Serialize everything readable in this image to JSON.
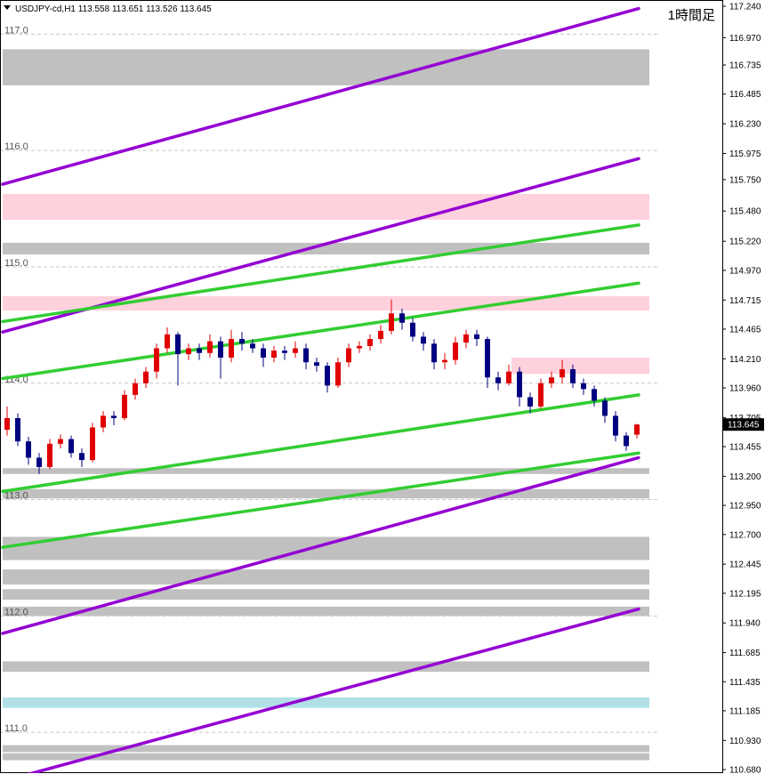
{
  "chart_data": {
    "type": "candlestick",
    "title": "USDJPY-cd,H1  113.558 113.651 113.526 113.645",
    "timeframe_label": "1時間足",
    "ylim": [
      110.68,
      117.24
    ],
    "yticks": [
      {
        "value": 117.24,
        "label": "117.240"
      },
      {
        "value": 116.97,
        "label": "116.970"
      },
      116.735,
      116.485,
      {
        "value": 116.23,
        "label": "116.230"
      },
      115.975,
      {
        "value": 115.75,
        "label": "115.750"
      },
      {
        "value": 115.48,
        "label": "115.480"
      },
      {
        "value": 115.22,
        "label": "115.220"
      },
      {
        "value": 114.97,
        "label": "114.970"
      },
      114.715,
      114.465,
      {
        "value": 114.21,
        "label": "114.210"
      },
      {
        "value": 113.96,
        "label": "113.960"
      },
      113.705,
      113.455,
      {
        "value": 113.2,
        "label": "113.200"
      },
      {
        "value": 112.95,
        "label": "112.950"
      },
      {
        "value": 112.7,
        "label": "112.700"
      },
      112.445,
      112.195,
      {
        "value": 111.94,
        "label": "111.940"
      },
      111.685,
      111.435,
      111.185,
      {
        "value": 110.93,
        "label": "110.930"
      },
      {
        "value": 110.68,
        "label": "110.680"
      }
    ],
    "grid_levels": [
      {
        "value": 117,
        "label": "117.0"
      },
      {
        "value": 116,
        "label": "116.0"
      },
      {
        "value": 115,
        "label": "115.0"
      },
      {
        "value": 114,
        "label": "114.0"
      },
      {
        "value": 113,
        "label": "113.0"
      },
      {
        "value": 112,
        "label": "112.0"
      },
      {
        "value": 111,
        "label": "111.0"
      }
    ],
    "up_color": "#e00000",
    "down_color": "#000080",
    "candles": [
      [
        113.6,
        113.8,
        113.55,
        113.7
      ],
      [
        113.7,
        113.74,
        113.46,
        113.5
      ],
      [
        113.5,
        113.54,
        113.3,
        113.36
      ],
      [
        113.36,
        113.4,
        113.22,
        113.28
      ],
      [
        113.28,
        113.52,
        113.26,
        113.48
      ],
      [
        113.48,
        113.56,
        113.44,
        113.52
      ],
      [
        113.52,
        113.55,
        113.36,
        113.4
      ],
      [
        113.4,
        113.44,
        113.28,
        113.34
      ],
      [
        113.34,
        113.66,
        113.32,
        113.62
      ],
      [
        113.62,
        113.76,
        113.58,
        113.72
      ],
      [
        113.72,
        113.76,
        113.64,
        113.7
      ],
      [
        113.7,
        113.94,
        113.68,
        113.9
      ],
      [
        113.9,
        114.04,
        113.86,
        114.0
      ],
      [
        114.0,
        114.14,
        113.96,
        114.1
      ],
      [
        114.1,
        114.34,
        114.04,
        114.3
      ],
      [
        114.3,
        114.48,
        114.26,
        114.42
      ],
      [
        114.42,
        114.44,
        113.98,
        114.25
      ],
      [
        114.25,
        114.34,
        114.2,
        114.3
      ],
      [
        114.3,
        114.34,
        114.2,
        114.26
      ],
      [
        114.26,
        114.42,
        114.22,
        114.36
      ],
      [
        114.36,
        114.4,
        114.04,
        114.22
      ],
      [
        114.22,
        114.46,
        114.18,
        114.38
      ],
      [
        114.38,
        114.44,
        114.28,
        114.34
      ],
      [
        114.34,
        114.38,
        114.26,
        114.3
      ],
      [
        114.3,
        114.34,
        114.14,
        114.22
      ],
      [
        114.22,
        114.32,
        114.18,
        114.28
      ],
      [
        114.28,
        114.32,
        114.2,
        114.26
      ],
      [
        114.26,
        114.36,
        114.22,
        114.3
      ],
      [
        114.3,
        114.34,
        114.12,
        114.18
      ],
      [
        114.18,
        114.22,
        114.1,
        114.15
      ],
      [
        114.15,
        114.18,
        113.92,
        113.98
      ],
      [
        113.98,
        114.22,
        113.96,
        114.18
      ],
      [
        114.18,
        114.34,
        114.14,
        114.3
      ],
      [
        114.3,
        114.36,
        114.26,
        114.32
      ],
      [
        114.32,
        114.42,
        114.28,
        114.38
      ],
      [
        114.38,
        114.5,
        114.34,
        114.45
      ],
      [
        114.45,
        114.72,
        114.42,
        114.6
      ],
      [
        114.6,
        114.64,
        114.46,
        114.52
      ],
      [
        114.52,
        114.56,
        114.36,
        114.4
      ],
      [
        114.4,
        114.44,
        114.28,
        114.34
      ],
      [
        114.34,
        114.38,
        114.12,
        114.18
      ],
      [
        114.18,
        114.26,
        114.12,
        114.2
      ],
      [
        114.2,
        114.4,
        114.16,
        114.35
      ],
      [
        114.35,
        114.46,
        114.3,
        114.42
      ],
      [
        114.42,
        114.46,
        114.32,
        114.38
      ],
      [
        114.38,
        114.4,
        113.96,
        114.05
      ],
      [
        114.05,
        114.1,
        113.94,
        114.0
      ],
      [
        114.0,
        114.16,
        113.98,
        114.1
      ],
      [
        114.1,
        114.14,
        113.8,
        113.88
      ],
      [
        113.88,
        113.92,
        113.74,
        113.8
      ],
      [
        113.8,
        114.04,
        113.78,
        114.0
      ],
      [
        114.0,
        114.1,
        113.96,
        114.05
      ],
      [
        114.05,
        114.2,
        114.0,
        114.12
      ],
      [
        114.12,
        114.16,
        113.96,
        114.0
      ],
      [
        114.0,
        114.04,
        113.9,
        113.95
      ],
      [
        113.95,
        113.98,
        113.8,
        113.85
      ],
      [
        113.85,
        113.88,
        113.66,
        113.72
      ],
      [
        113.72,
        113.76,
        113.5,
        113.55
      ],
      [
        113.55,
        113.58,
        113.42,
        113.46
      ],
      [
        113.558,
        113.651,
        113.526,
        113.645
      ]
    ],
    "zones": [
      {
        "top": 116.87,
        "bottom": 116.56,
        "color": "#c0c0c0"
      },
      {
        "top": 115.627,
        "bottom": 115.405,
        "color": "#ffd1dc"
      },
      {
        "top": 115.207,
        "bottom": 115.107,
        "color": "#c0c0c0"
      },
      {
        "top": 114.748,
        "bottom": 114.625,
        "color": "#ffd1dc"
      },
      {
        "top": 114.22,
        "bottom": 114.08,
        "color": "#ffd1dc",
        "from_right": true
      },
      {
        "top": 113.27,
        "bottom": 113.22,
        "color": "#c0c0c0"
      },
      {
        "top": 113.09,
        "bottom": 113.01,
        "color": "#c0c0c0"
      },
      {
        "top": 112.68,
        "bottom": 112.48,
        "color": "#c0c0c0"
      },
      {
        "top": 112.4,
        "bottom": 112.27,
        "color": "#c0c0c0"
      },
      {
        "top": 112.23,
        "bottom": 112.14,
        "color": "#c0c0c0"
      },
      {
        "top": 112.08,
        "bottom": 112.0,
        "color": "#c0c0c0"
      },
      {
        "top": 111.61,
        "bottom": 111.52,
        "color": "#c0c0c0"
      },
      {
        "top": 111.3,
        "bottom": 111.21,
        "color": "#b0e0e6"
      },
      {
        "top": 110.89,
        "bottom": 110.83,
        "color": "#c0c0c0"
      },
      {
        "top": 110.82,
        "bottom": 110.76,
        "color": "#c0c0c0"
      }
    ],
    "trendlines": [
      {
        "start": 115.71,
        "end": 117.22,
        "color": "#9400d3"
      },
      {
        "start": 114.44,
        "end": 115.93,
        "color": "#9400d3"
      },
      {
        "start": 111.85,
        "end": 113.36,
        "color": "#9400d3"
      },
      {
        "start": 110.58,
        "end": 112.06,
        "color": "#9400d3"
      },
      {
        "start": 114.53,
        "end": 115.36,
        "color": "#32cd32"
      },
      {
        "start": 114.04,
        "end": 114.86,
        "color": "#32cd32"
      },
      {
        "start": 113.07,
        "end": 113.9,
        "color": "#32cd32"
      },
      {
        "start": 112.59,
        "end": 113.4,
        "color": "#32cd32"
      }
    ]
  }
}
